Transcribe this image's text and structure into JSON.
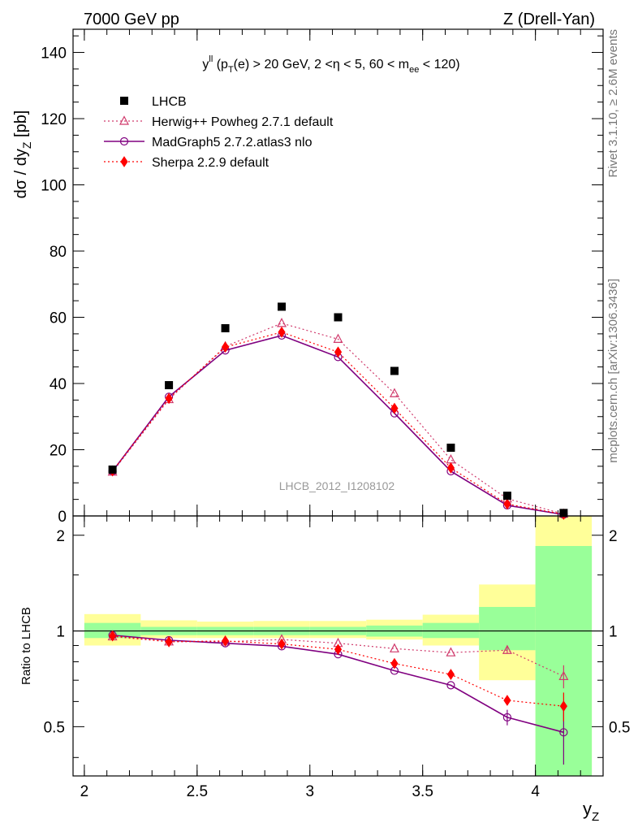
{
  "header": {
    "left": "7000 GeV pp",
    "right": "Z (Drell-Yan)"
  },
  "side_text": {
    "rivet": "Rivet 3.1.10, ≥ 2.6M events",
    "mcplots": "mcplots.cern.ch [arXiv:1306.3436]"
  },
  "chart_data": {
    "type": "scatter",
    "title_parts": {
      "a": "y",
      "a_sup": "ll",
      "b": " (p",
      "b_sub": "T",
      "c": "(e) > 20 GeV, 2 <η < 5, 60 < m",
      "c_sub": "ee",
      "d": " < 120)"
    },
    "watermark": "LHCB_2012_I1208102",
    "xlabel": "y",
    "xlabel_sub": "Z",
    "ylabel": "dσ / dy",
    "ylabel_sub": "Z",
    "ylabel_unit": " [pb]",
    "ratio_ylabel": "Ratio to LHCB",
    "xlim": [
      1.95,
      4.3
    ],
    "ylim": [
      0,
      147
    ],
    "ratio_ylim": [
      0.35,
      2.3
    ],
    "x_ticks": [
      2,
      2.5,
      3,
      3.5,
      4
    ],
    "x_tick_labels": [
      "2",
      "2.5",
      "3",
      "3.5",
      "4"
    ],
    "y_ticks": [
      0,
      20,
      40,
      60,
      80,
      100,
      120,
      140
    ],
    "y_tick_labels": [
      "0",
      "20",
      "40",
      "60",
      "80",
      "100",
      "120",
      "140"
    ],
    "ratio_ticks": [
      0.5,
      1,
      2
    ],
    "ratio_tick_labels": [
      "0.5",
      "1",
      "2"
    ],
    "x": [
      2.125,
      2.375,
      2.625,
      2.875,
      3.125,
      3.375,
      3.625,
      3.875,
      4.125
    ],
    "bin_edges": [
      2.0,
      2.25,
      2.5,
      2.75,
      3.0,
      3.25,
      3.5,
      3.75,
      4.0,
      4.25
    ],
    "data": {
      "name": "LHCB",
      "values": [
        14.0,
        39.5,
        56.7,
        63.2,
        60.0,
        43.8,
        20.6,
        6.1,
        0.9
      ]
    },
    "ratio_band_inner": [
      [
        0.95,
        1.06
      ],
      [
        0.97,
        1.03
      ],
      [
        0.97,
        1.03
      ],
      [
        0.97,
        1.03
      ],
      [
        0.97,
        1.03
      ],
      [
        0.96,
        1.04
      ],
      [
        0.95,
        1.06
      ],
      [
        0.87,
        1.19
      ],
      [
        0.35,
        1.85
      ]
    ],
    "ratio_band_outer": [
      [
        0.9,
        1.13
      ],
      [
        0.95,
        1.08
      ],
      [
        0.95,
        1.07
      ],
      [
        0.95,
        1.075
      ],
      [
        0.95,
        1.075
      ],
      [
        0.94,
        1.085
      ],
      [
        0.9,
        1.125
      ],
      [
        0.7,
        1.4
      ],
      [
        0.35,
        2.3
      ]
    ],
    "series": [
      {
        "name": "Herwig++ Powheg 2.7.1 default",
        "color": "#d03a6c",
        "values": [
          13.3,
          35.2,
          51.2,
          58.2,
          53.4,
          37.0,
          17.0,
          5.2,
          0.6
        ],
        "ratio": [
          0.96,
          0.925,
          0.925,
          0.94,
          0.915,
          0.88,
          0.855,
          0.87,
          0.72
        ],
        "ratio_err": [
          0,
          0,
          0,
          0,
          0,
          0,
          0,
          0.02,
          0.06
        ]
      },
      {
        "name": "MadGraph5 2.7.2.atlas3 nlo",
        "color": "#800080",
        "values": [
          13.5,
          36.0,
          50.0,
          54.5,
          48.0,
          31.0,
          13.5,
          3.2,
          0.4
        ],
        "ratio": [
          0.97,
          0.935,
          0.915,
          0.895,
          0.845,
          0.75,
          0.675,
          0.535,
          0.48
        ],
        "ratio_err": [
          0,
          0,
          0,
          0,
          0,
          0,
          0,
          0.03,
          0.1
        ]
      },
      {
        "name": "Sherpa 2.2.9 default",
        "color": "#ff0000",
        "values": [
          13.6,
          35.5,
          51.0,
          55.5,
          49.5,
          32.5,
          14.5,
          3.6,
          0.5
        ],
        "ratio": [
          0.965,
          0.925,
          0.93,
          0.91,
          0.875,
          0.79,
          0.73,
          0.605,
          0.58
        ],
        "ratio_err": [
          0,
          0,
          0,
          0,
          0,
          0,
          0,
          0,
          0.06
        ]
      }
    ]
  }
}
